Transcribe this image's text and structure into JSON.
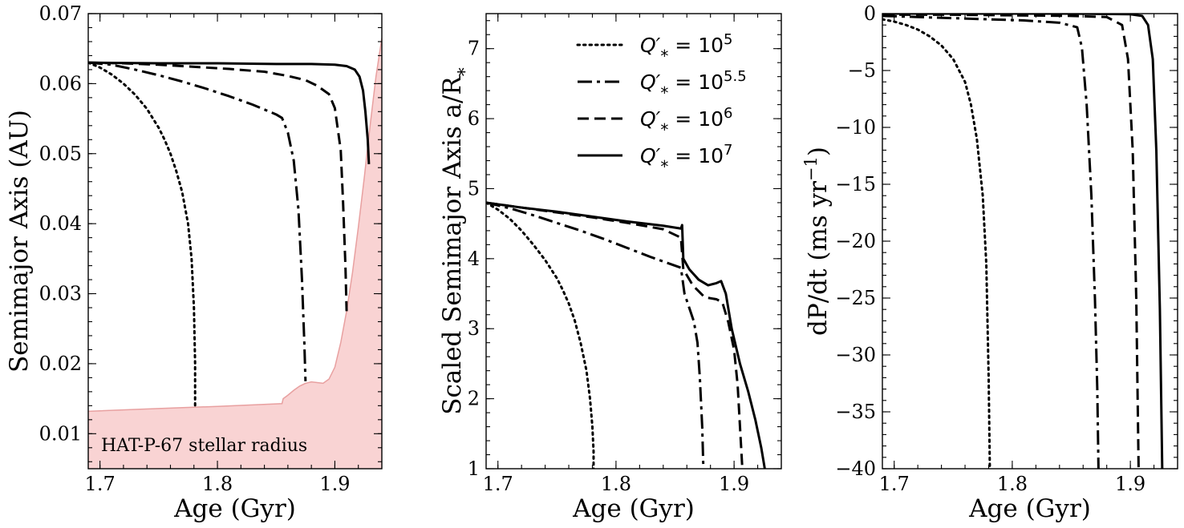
{
  "chart_data": [
    {
      "type": "line",
      "xlabel": "Age (Gyr)",
      "ylabel": "Semimajor Axis (AU)",
      "xlim": [
        1.69,
        1.94
      ],
      "ylim": [
        0.005,
        0.07
      ],
      "xticks": [
        1.7,
        1.8,
        1.9
      ],
      "yticks": [
        0.01,
        0.02,
        0.03,
        0.04,
        0.05,
        0.06,
        0.07
      ],
      "xtick_labels": [
        "1.7",
        "1.8",
        "1.9"
      ],
      "ytick_labels": [
        "0.01",
        "0.02",
        "0.03",
        "0.04",
        "0.05",
        "0.06",
        "0.07"
      ],
      "annotation": "HAT-P-67 stellar radius",
      "shade_color": "#f9d3d3",
      "shade_edge": "#e8a0a0",
      "stellar_radius": {
        "x": [
          1.69,
          1.75,
          1.8,
          1.855,
          1.856,
          1.86,
          1.865,
          1.87,
          1.875,
          1.88,
          1.885,
          1.89,
          1.895,
          1.9,
          1.905,
          1.91,
          1.915,
          1.92,
          1.925,
          1.93,
          1.935,
          1.94
        ],
        "y": [
          0.0132,
          0.0136,
          0.0139,
          0.0143,
          0.015,
          0.0155,
          0.0162,
          0.0168,
          0.0172,
          0.0174,
          0.0173,
          0.0172,
          0.0178,
          0.0195,
          0.023,
          0.0275,
          0.033,
          0.0395,
          0.0465,
          0.054,
          0.061,
          0.0665
        ]
      },
      "series": [
        {
          "name": "Q'* = 10^5",
          "dash": "dotted",
          "x": [
            1.69,
            1.7,
            1.71,
            1.72,
            1.73,
            1.74,
            1.75,
            1.755,
            1.76,
            1.765,
            1.77,
            1.775,
            1.778,
            1.78,
            1.781,
            1.781
          ],
          "y": [
            0.063,
            0.0623,
            0.0613,
            0.06,
            0.0584,
            0.0564,
            0.0537,
            0.052,
            0.05,
            0.0475,
            0.0445,
            0.04,
            0.035,
            0.028,
            0.02,
            0.0135
          ]
        },
        {
          "name": "Q'* = 10^5.5",
          "dash": "dashdot",
          "x": [
            1.69,
            1.71,
            1.73,
            1.75,
            1.77,
            1.79,
            1.81,
            1.83,
            1.85,
            1.855,
            1.86,
            1.865,
            1.869,
            1.872,
            1.874,
            1.875
          ],
          "y": [
            0.063,
            0.0627,
            0.062,
            0.0612,
            0.0603,
            0.0593,
            0.0582,
            0.057,
            0.0556,
            0.0551,
            0.053,
            0.049,
            0.042,
            0.032,
            0.023,
            0.0175
          ]
        },
        {
          "name": "Q'* = 10^6",
          "dash": "dashed",
          "x": [
            1.69,
            1.72,
            1.75,
            1.78,
            1.81,
            1.84,
            1.86,
            1.875,
            1.885,
            1.895,
            1.9,
            1.905,
            1.907,
            1.909,
            1.91
          ],
          "y": [
            0.063,
            0.0629,
            0.0627,
            0.0624,
            0.0621,
            0.0617,
            0.0611,
            0.0605,
            0.0597,
            0.0585,
            0.0565,
            0.0505,
            0.043,
            0.034,
            0.0275
          ]
        },
        {
          "name": "Q'* = 10^7",
          "dash": "solid",
          "x": [
            1.69,
            1.75,
            1.8,
            1.85,
            1.88,
            1.9,
            1.91,
            1.917,
            1.921,
            1.924,
            1.926,
            1.928,
            1.929
          ],
          "y": [
            0.063,
            0.0629,
            0.0629,
            0.0628,
            0.0628,
            0.0627,
            0.0625,
            0.062,
            0.061,
            0.059,
            0.056,
            0.052,
            0.0485
          ]
        }
      ]
    },
    {
      "type": "line",
      "xlabel": "Age (Gyr)",
      "ylabel": "Scaled Semimajor Axis a/R",
      "ylabel_sub": "*",
      "xlim": [
        1.69,
        1.94
      ],
      "ylim": [
        1,
        7.5
      ],
      "xticks": [
        1.7,
        1.8,
        1.9
      ],
      "yticks": [
        1,
        2,
        3,
        4,
        5,
        6,
        7
      ],
      "xtick_labels": [
        "1.7",
        "1.8",
        "1.9"
      ],
      "ytick_labels": [
        "1",
        "2",
        "3",
        "4",
        "5",
        "6",
        "7"
      ],
      "legend": {
        "position": "upper-right",
        "entries": [
          {
            "prefix": "Q′",
            "sub": "*",
            "eq": " = 10",
            "exp": "5"
          },
          {
            "prefix": "Q′",
            "sub": "*",
            "eq": " = 10",
            "exp": "5.5"
          },
          {
            "prefix": "Q′",
            "sub": "*",
            "eq": " = 10",
            "exp": "6"
          },
          {
            "prefix": "Q′",
            "sub": "*",
            "eq": " = 10",
            "exp": "7"
          }
        ]
      },
      "series": [
        {
          "name": "Q'* = 10^5",
          "dash": "dotted",
          "x": [
            1.69,
            1.7,
            1.71,
            1.72,
            1.73,
            1.74,
            1.75,
            1.755,
            1.76,
            1.765,
            1.77,
            1.775,
            1.778,
            1.78,
            1.781,
            1.781
          ],
          "y": [
            4.8,
            4.7,
            4.57,
            4.4,
            4.2,
            3.98,
            3.72,
            3.55,
            3.36,
            3.12,
            2.8,
            2.4,
            2.0,
            1.6,
            1.25,
            1.0
          ]
        },
        {
          "name": "Q'* = 10^5.5",
          "dash": "dashdot",
          "x": [
            1.69,
            1.71,
            1.73,
            1.75,
            1.77,
            1.79,
            1.81,
            1.83,
            1.85,
            1.855,
            1.858,
            1.862,
            1.866,
            1.869,
            1.871,
            1.873,
            1.874
          ],
          "y": [
            4.8,
            4.72,
            4.62,
            4.51,
            4.4,
            4.28,
            4.15,
            4.02,
            3.9,
            3.87,
            3.5,
            3.3,
            3.1,
            2.8,
            2.3,
            1.6,
            1.0
          ]
        },
        {
          "name": "Q'* = 10^6",
          "dash": "dashed",
          "x": [
            1.69,
            1.72,
            1.75,
            1.78,
            1.81,
            1.84,
            1.855,
            1.857,
            1.865,
            1.875,
            1.885,
            1.89,
            1.895,
            1.9,
            1.903,
            1.905,
            1.907
          ],
          "y": [
            4.8,
            4.73,
            4.66,
            4.59,
            4.51,
            4.42,
            4.3,
            3.85,
            3.62,
            3.45,
            3.42,
            3.38,
            3.1,
            2.7,
            2.2,
            1.6,
            1.0
          ]
        },
        {
          "name": "Q'* = 10^7",
          "dash": "solid",
          "x": [
            1.69,
            1.72,
            1.75,
            1.78,
            1.81,
            1.84,
            1.855,
            1.856,
            1.857,
            1.862,
            1.87,
            1.878,
            1.885,
            1.889,
            1.893,
            1.898,
            1.905,
            1.912,
            1.918,
            1.923,
            1.926
          ],
          "y": [
            4.8,
            4.73,
            4.67,
            4.6,
            4.53,
            4.47,
            4.43,
            4.48,
            4.0,
            3.85,
            3.7,
            3.62,
            3.65,
            3.68,
            3.5,
            3.0,
            2.5,
            2.1,
            1.7,
            1.3,
            1.0
          ]
        }
      ]
    },
    {
      "type": "line",
      "xlabel": "Age (Gyr)",
      "ylabel": "dP/dt (ms yr",
      "ylabel_sup": "−1",
      "ylabel_tail": ")",
      "xlim": [
        1.69,
        1.94
      ],
      "ylim": [
        -40,
        0
      ],
      "xticks": [
        1.7,
        1.8,
        1.9
      ],
      "yticks": [
        0,
        -5,
        -10,
        -15,
        -20,
        -25,
        -30,
        -35,
        -40
      ],
      "xtick_labels": [
        "1.7",
        "1.8",
        "1.9"
      ],
      "ytick_labels": [
        "0",
        "−5",
        "−10",
        "−15",
        "−20",
        "−25",
        "−30",
        "−35",
        "−40"
      ],
      "series": [
        {
          "name": "Q'* = 10^5",
          "dash": "dotted",
          "x": [
            1.69,
            1.7,
            1.71,
            1.72,
            1.73,
            1.74,
            1.75,
            1.76,
            1.765,
            1.77,
            1.775,
            1.778,
            1.78,
            1.781
          ],
          "y": [
            -0.5,
            -0.7,
            -1.0,
            -1.4,
            -2.0,
            -2.8,
            -4.0,
            -6.0,
            -8.0,
            -11.0,
            -16.0,
            -22.0,
            -32.0,
            -40.0
          ]
        },
        {
          "name": "Q'* = 10^5.5",
          "dash": "dashdot",
          "x": [
            1.69,
            1.72,
            1.75,
            1.78,
            1.81,
            1.84,
            1.855,
            1.859,
            1.863,
            1.867,
            1.87,
            1.872,
            1.873
          ],
          "y": [
            -0.2,
            -0.3,
            -0.4,
            -0.5,
            -0.6,
            -0.8,
            -1.2,
            -3.0,
            -8.0,
            -16.0,
            -25.0,
            -33.0,
            -40.0
          ]
        },
        {
          "name": "Q'* = 10^6",
          "dash": "dashed",
          "x": [
            1.69,
            1.75,
            1.8,
            1.85,
            1.88,
            1.893,
            1.898,
            1.902,
            1.905,
            1.907
          ],
          "y": [
            -0.1,
            -0.1,
            -0.15,
            -0.2,
            -0.3,
            -1.0,
            -4.0,
            -12.0,
            -25.0,
            -40.0
          ]
        },
        {
          "name": "Q'* = 10^7",
          "dash": "solid",
          "x": [
            1.69,
            1.75,
            1.8,
            1.85,
            1.9,
            1.91,
            1.915,
            1.919,
            1.922,
            1.925,
            1.927
          ],
          "y": [
            0.0,
            0.0,
            0.0,
            0.0,
            -0.05,
            -0.2,
            -1.0,
            -4.0,
            -12.0,
            -26.0,
            -40.0
          ]
        }
      ]
    }
  ]
}
